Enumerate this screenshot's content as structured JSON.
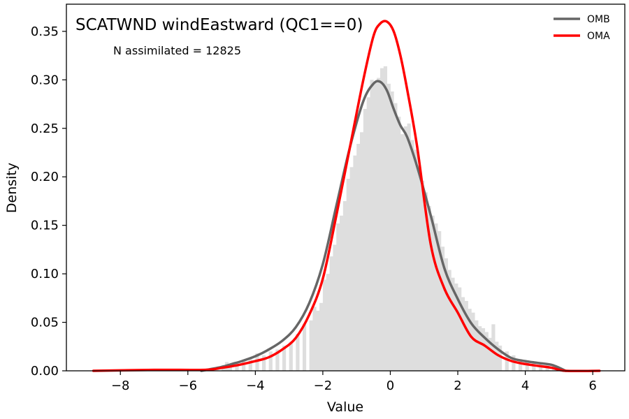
{
  "chart_data": {
    "type": "histogram-kde",
    "title": "SCATWND windEastward (QC1==0)",
    "annotation": "N assimilated = 12825",
    "xlabel": "Value",
    "ylabel": "Density",
    "xlim": [
      -9.6,
      6.95
    ],
    "ylim": [
      0,
      0.378
    ],
    "xticks": [
      -8,
      -6,
      -4,
      -2,
      0,
      2,
      4,
      6
    ],
    "xtick_labels": [
      "−8",
      "−6",
      "−4",
      "−2",
      "0",
      "2",
      "4",
      "6"
    ],
    "yticks": [
      0.0,
      0.05,
      0.1,
      0.15,
      0.2,
      0.25,
      0.3,
      0.35
    ],
    "ytick_labels": [
      "0.00",
      "0.05",
      "0.10",
      "0.15",
      "0.20",
      "0.25",
      "0.30",
      "0.35"
    ],
    "grid": false,
    "legend_position": "top-right",
    "colors": {
      "histogram": "#dedede",
      "omb": "#666666",
      "oma": "#ff0000"
    },
    "histogram": {
      "bin_width": 0.1,
      "bins": [
        {
          "x": -5.0,
          "y": 0.006
        },
        {
          "x": -4.9,
          "y": 0.009
        },
        {
          "x": -4.8,
          "y": 0.007
        },
        {
          "x": -4.6,
          "y": 0.008
        },
        {
          "x": -4.4,
          "y": 0.01
        },
        {
          "x": -4.2,
          "y": 0.012
        },
        {
          "x": -4.0,
          "y": 0.018
        },
        {
          "x": -3.8,
          "y": 0.016
        },
        {
          "x": -3.6,
          "y": 0.02
        },
        {
          "x": -3.4,
          "y": 0.022
        },
        {
          "x": -3.2,
          "y": 0.026
        },
        {
          "x": -3.0,
          "y": 0.03
        },
        {
          "x": -2.8,
          "y": 0.038
        },
        {
          "x": -2.6,
          "y": 0.048
        },
        {
          "x": -2.4,
          "y": 0.052
        },
        {
          "x": -2.3,
          "y": 0.066
        },
        {
          "x": -2.2,
          "y": 0.062
        },
        {
          "x": -2.1,
          "y": 0.07
        },
        {
          "x": -2.0,
          "y": 0.094
        },
        {
          "x": -1.9,
          "y": 0.1
        },
        {
          "x": -1.8,
          "y": 0.118
        },
        {
          "x": -1.7,
          "y": 0.13
        },
        {
          "x": -1.6,
          "y": 0.152
        },
        {
          "x": -1.5,
          "y": 0.16
        },
        {
          "x": -1.4,
          "y": 0.175
        },
        {
          "x": -1.3,
          "y": 0.198
        },
        {
          "x": -1.2,
          "y": 0.21
        },
        {
          "x": -1.1,
          "y": 0.222
        },
        {
          "x": -1.0,
          "y": 0.234
        },
        {
          "x": -0.9,
          "y": 0.246
        },
        {
          "x": -0.8,
          "y": 0.27
        },
        {
          "x": -0.7,
          "y": 0.282
        },
        {
          "x": -0.6,
          "y": 0.3
        },
        {
          "x": -0.5,
          "y": 0.298
        },
        {
          "x": -0.4,
          "y": 0.302
        },
        {
          "x": -0.3,
          "y": 0.312
        },
        {
          "x": -0.2,
          "y": 0.314
        },
        {
          "x": -0.1,
          "y": 0.296
        },
        {
          "x": 0.0,
          "y": 0.288
        },
        {
          "x": 0.1,
          "y": 0.276
        },
        {
          "x": 0.2,
          "y": 0.262
        },
        {
          "x": 0.3,
          "y": 0.244
        },
        {
          "x": 0.4,
          "y": 0.252
        },
        {
          "x": 0.5,
          "y": 0.255
        },
        {
          "x": 0.6,
          "y": 0.238
        },
        {
          "x": 0.7,
          "y": 0.228
        },
        {
          "x": 0.8,
          "y": 0.212
        },
        {
          "x": 0.9,
          "y": 0.196
        },
        {
          "x": 1.0,
          "y": 0.184
        },
        {
          "x": 1.1,
          "y": 0.17
        },
        {
          "x": 1.2,
          "y": 0.16
        },
        {
          "x": 1.3,
          "y": 0.152
        },
        {
          "x": 1.4,
          "y": 0.144
        },
        {
          "x": 1.5,
          "y": 0.128
        },
        {
          "x": 1.6,
          "y": 0.116
        },
        {
          "x": 1.7,
          "y": 0.104
        },
        {
          "x": 1.8,
          "y": 0.096
        },
        {
          "x": 1.9,
          "y": 0.09
        },
        {
          "x": 2.0,
          "y": 0.086
        },
        {
          "x": 2.1,
          "y": 0.076
        },
        {
          "x": 2.2,
          "y": 0.072
        },
        {
          "x": 2.3,
          "y": 0.064
        },
        {
          "x": 2.4,
          "y": 0.06
        },
        {
          "x": 2.5,
          "y": 0.052
        },
        {
          "x": 2.6,
          "y": 0.046
        },
        {
          "x": 2.7,
          "y": 0.044
        },
        {
          "x": 2.8,
          "y": 0.04
        },
        {
          "x": 2.9,
          "y": 0.034
        },
        {
          "x": 3.0,
          "y": 0.048
        },
        {
          "x": 3.1,
          "y": 0.03
        },
        {
          "x": 3.2,
          "y": 0.026
        },
        {
          "x": 3.4,
          "y": 0.02
        },
        {
          "x": 3.6,
          "y": 0.016
        },
        {
          "x": 3.8,
          "y": 0.012
        },
        {
          "x": 4.0,
          "y": 0.01
        },
        {
          "x": 4.2,
          "y": 0.008
        },
        {
          "x": 4.4,
          "y": 0.007
        },
        {
          "x": 4.6,
          "y": 0.006
        },
        {
          "x": 4.8,
          "y": 0.006
        }
      ]
    },
    "series": [
      {
        "name": "OMB",
        "x": [
          -5.6,
          -5.0,
          -4.7,
          -4.4,
          -4.0,
          -3.6,
          -3.2,
          -2.8,
          -2.4,
          -2.0,
          -1.6,
          -1.2,
          -0.8,
          -0.5,
          -0.3,
          -0.1,
          0.1,
          0.3,
          0.5,
          0.8,
          1.2,
          1.6,
          2.0,
          2.4,
          2.8,
          3.2,
          3.6,
          4.0,
          4.4,
          4.8,
          5.2
        ],
        "y": [
          0.0,
          0.004,
          0.007,
          0.01,
          0.015,
          0.022,
          0.031,
          0.045,
          0.07,
          0.11,
          0.17,
          0.23,
          0.278,
          0.296,
          0.298,
          0.289,
          0.27,
          0.253,
          0.241,
          0.21,
          0.16,
          0.106,
          0.074,
          0.049,
          0.034,
          0.022,
          0.013,
          0.01,
          0.008,
          0.006,
          0.0
        ]
      },
      {
        "name": "OMA",
        "x": [
          -8.8,
          -7.0,
          -5.5,
          -5.0,
          -4.5,
          -4.0,
          -3.6,
          -3.2,
          -2.8,
          -2.4,
          -2.0,
          -1.6,
          -1.2,
          -0.8,
          -0.5,
          -0.3,
          -0.1,
          0.1,
          0.3,
          0.5,
          0.8,
          1.2,
          1.6,
          2.0,
          2.4,
          2.8,
          3.2,
          3.6,
          4.0,
          4.4,
          4.8,
          5.2,
          6.2
        ],
        "y": [
          0.0,
          0.001,
          0.001,
          0.003,
          0.006,
          0.01,
          0.014,
          0.022,
          0.034,
          0.058,
          0.095,
          0.16,
          0.23,
          0.3,
          0.345,
          0.358,
          0.36,
          0.35,
          0.325,
          0.29,
          0.23,
          0.13,
          0.085,
          0.06,
          0.035,
          0.026,
          0.016,
          0.01,
          0.007,
          0.005,
          0.003,
          0.0,
          0.0
        ]
      }
    ]
  }
}
